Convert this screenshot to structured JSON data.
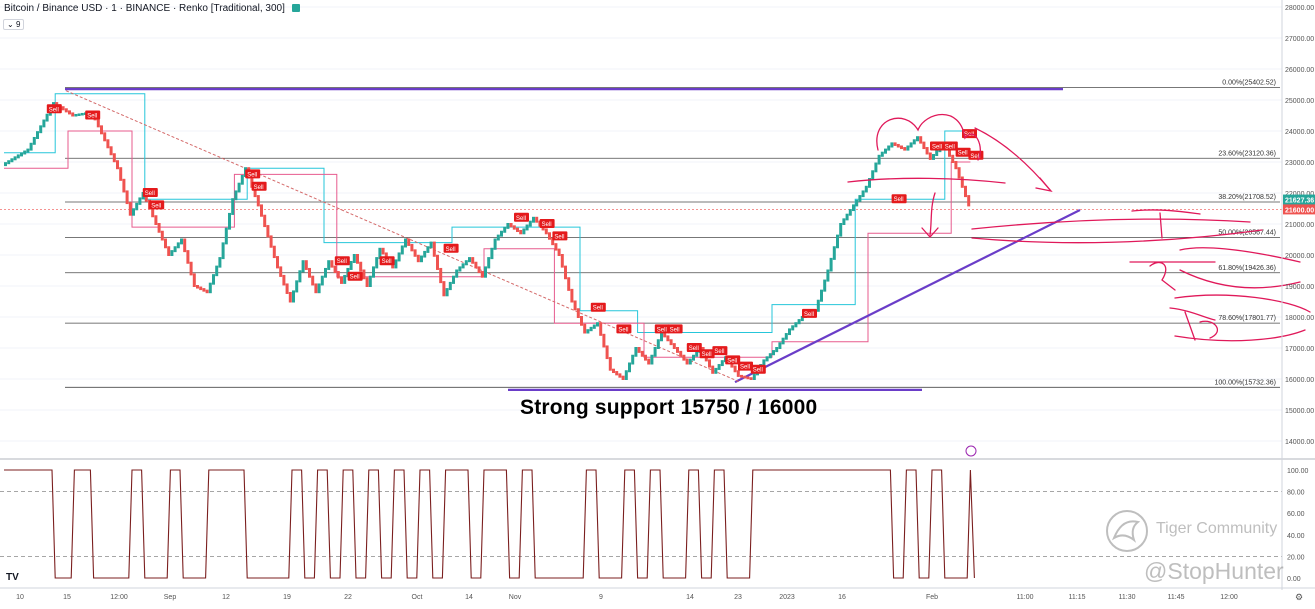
{
  "header": {
    "title": "Bitcoin / Binance USD · 1 · BINANCE · Renko [Traditional, 300]",
    "indicator_count": "9"
  },
  "annotation_text": "Strong support 15750 / 16000",
  "watermark": {
    "brand": "Tiger Community",
    "user": "@StopHunter"
  },
  "colors": {
    "up": "#26a69a",
    "down": "#ef5350",
    "purple": "#6a3dc8",
    "pink_hand": "#e0195a",
    "osc": "#7b1f1f",
    "fib_line": "#4a4a4a"
  },
  "chart_data": {
    "type": "renko",
    "y_axis": {
      "min": 13500,
      "max": 28500,
      "ticks": [
        14000,
        15000,
        16000,
        17000,
        18000,
        19000,
        20000,
        21000,
        22000,
        23000,
        24000,
        25000,
        26000,
        27000,
        28000
      ],
      "tick_labels": [
        "14000.00",
        "15000.00",
        "16000.00",
        "17000.00",
        "18000.00",
        "19000.00",
        "20000.00",
        "21000.00",
        "22000.00",
        "23000.00",
        "24000.00",
        "25000.00",
        "26000.00",
        "27000.00",
        "28000.00"
      ]
    },
    "price_labels": [
      {
        "value": 21627.36,
        "text": "21627.36",
        "color": "#26a69a"
      },
      {
        "value": 21600.0,
        "text": "21600.00",
        "color": "#ef5350"
      }
    ],
    "x_axis_labels": [
      "10",
      "15",
      "12:00",
      "Sep",
      "12",
      "19",
      "22",
      "Oct",
      "14",
      "Nov",
      "9",
      "14",
      "23",
      "2023",
      "16",
      "Feb",
      "11:00",
      "11:15",
      "11:30",
      "11:45",
      "12:00"
    ],
    "fib_levels": [
      {
        "ratio": "0.00%",
        "price": 25402.52,
        "label": "0.00%(25402.52)"
      },
      {
        "ratio": "23.60%",
        "price": 23120.36,
        "label": "23.60%(23120.36)"
      },
      {
        "ratio": "38.20%",
        "price": 21708.52,
        "label": "38.20%(21708.52)"
      },
      {
        "ratio": "50.00%",
        "price": 20567.44,
        "label": "50.00%(20567.44)"
      },
      {
        "ratio": "61.80%",
        "price": 19426.36,
        "label": "61.80%(19426.36)"
      },
      {
        "ratio": "78.60%",
        "price": 17801.77,
        "label": "78.60%(17801.77)"
      },
      {
        "ratio": "100.00%",
        "price": 15732.36,
        "label": "100.00%(15732.36)"
      }
    ],
    "renko_path": [
      {
        "i": 0,
        "p": 22900
      },
      {
        "i": 8,
        "p": 23400
      },
      {
        "i": 16,
        "p": 24900
      },
      {
        "i": 22,
        "p": 24500
      },
      {
        "i": 28,
        "p": 24600
      },
      {
        "i": 36,
        "p": 22800
      },
      {
        "i": 40,
        "p": 21300
      },
      {
        "i": 44,
        "p": 22000
      },
      {
        "i": 48,
        "p": 21000
      },
      {
        "i": 52,
        "p": 20000
      },
      {
        "i": 56,
        "p": 20500
      },
      {
        "i": 60,
        "p": 19000
      },
      {
        "i": 64,
        "p": 18800
      },
      {
        "i": 68,
        "p": 19900
      },
      {
        "i": 72,
        "p": 21800
      },
      {
        "i": 76,
        "p": 22800
      },
      {
        "i": 80,
        "p": 21600
      },
      {
        "i": 86,
        "p": 19600
      },
      {
        "i": 90,
        "p": 18500
      },
      {
        "i": 94,
        "p": 19800
      },
      {
        "i": 98,
        "p": 18800
      },
      {
        "i": 102,
        "p": 19800
      },
      {
        "i": 106,
        "p": 19100
      },
      {
        "i": 110,
        "p": 20000
      },
      {
        "i": 114,
        "p": 19000
      },
      {
        "i": 118,
        "p": 20200
      },
      {
        "i": 122,
        "p": 19600
      },
      {
        "i": 126,
        "p": 20500
      },
      {
        "i": 130,
        "p": 19800
      },
      {
        "i": 134,
        "p": 20400
      },
      {
        "i": 138,
        "p": 18700
      },
      {
        "i": 142,
        "p": 19500
      },
      {
        "i": 146,
        "p": 19900
      },
      {
        "i": 150,
        "p": 19300
      },
      {
        "i": 154,
        "p": 20500
      },
      {
        "i": 158,
        "p": 21000
      },
      {
        "i": 162,
        "p": 20700
      },
      {
        "i": 166,
        "p": 21200
      },
      {
        "i": 170,
        "p": 20700
      },
      {
        "i": 174,
        "p": 20000
      },
      {
        "i": 178,
        "p": 18500
      },
      {
        "i": 182,
        "p": 17500
      },
      {
        "i": 186,
        "p": 17800
      },
      {
        "i": 190,
        "p": 16300
      },
      {
        "i": 194,
        "p": 16000
      },
      {
        "i": 198,
        "p": 17000
      },
      {
        "i": 202,
        "p": 16500
      },
      {
        "i": 206,
        "p": 17500
      },
      {
        "i": 210,
        "p": 17000
      },
      {
        "i": 214,
        "p": 16500
      },
      {
        "i": 218,
        "p": 17000
      },
      {
        "i": 222,
        "p": 16200
      },
      {
        "i": 226,
        "p": 16700
      },
      {
        "i": 230,
        "p": 16100
      },
      {
        "i": 234,
        "p": 16000
      },
      {
        "i": 238,
        "p": 16600
      },
      {
        "i": 242,
        "p": 17000
      },
      {
        "i": 246,
        "p": 17600
      },
      {
        "i": 250,
        "p": 18000
      },
      {
        "i": 254,
        "p": 18200
      },
      {
        "i": 258,
        "p": 19500
      },
      {
        "i": 262,
        "p": 21000
      },
      {
        "i": 266,
        "p": 21600
      },
      {
        "i": 270,
        "p": 22200
      },
      {
        "i": 274,
        "p": 23200
      },
      {
        "i": 278,
        "p": 23600
      },
      {
        "i": 282,
        "p": 23400
      },
      {
        "i": 286,
        "p": 23800
      },
      {
        "i": 290,
        "p": 23100
      },
      {
        "i": 294,
        "p": 23600
      },
      {
        "i": 298,
        "p": 22800
      },
      {
        "i": 302,
        "p": 21600
      }
    ],
    "sell_signals": [
      {
        "i": 14,
        "p": 24700
      },
      {
        "i": 26,
        "p": 24500
      },
      {
        "i": 44,
        "p": 22000
      },
      {
        "i": 46,
        "p": 21600
      },
      {
        "i": 76,
        "p": 22600
      },
      {
        "i": 78,
        "p": 22200
      },
      {
        "i": 104,
        "p": 19800
      },
      {
        "i": 108,
        "p": 19300
      },
      {
        "i": 118,
        "p": 19800
      },
      {
        "i": 138,
        "p": 20200
      },
      {
        "i": 160,
        "p": 21200
      },
      {
        "i": 168,
        "p": 21000
      },
      {
        "i": 172,
        "p": 20600
      },
      {
        "i": 184,
        "p": 18300
      },
      {
        "i": 192,
        "p": 17600
      },
      {
        "i": 204,
        "p": 17600
      },
      {
        "i": 208,
        "p": 17600
      },
      {
        "i": 214,
        "p": 17000
      },
      {
        "i": 218,
        "p": 16800
      },
      {
        "i": 222,
        "p": 16900
      },
      {
        "i": 226,
        "p": 16600
      },
      {
        "i": 230,
        "p": 16400
      },
      {
        "i": 234,
        "p": 16300
      },
      {
        "i": 250,
        "p": 18100
      },
      {
        "i": 278,
        "p": 21800
      },
      {
        "i": 290,
        "p": 23500
      },
      {
        "i": 294,
        "p": 23500
      },
      {
        "i": 298,
        "p": 23300
      },
      {
        "i": 300,
        "p": 23900
      },
      {
        "i": 302,
        "p": 23200
      }
    ],
    "oscillator": {
      "y_ticks": [
        0,
        20,
        40,
        60,
        80,
        100
      ],
      "y_tick_labels": [
        "0.00",
        "20.00",
        "40.00",
        "60.00",
        "80.00",
        "100.00"
      ],
      "dashed_levels": [
        20,
        80
      ]
    }
  }
}
